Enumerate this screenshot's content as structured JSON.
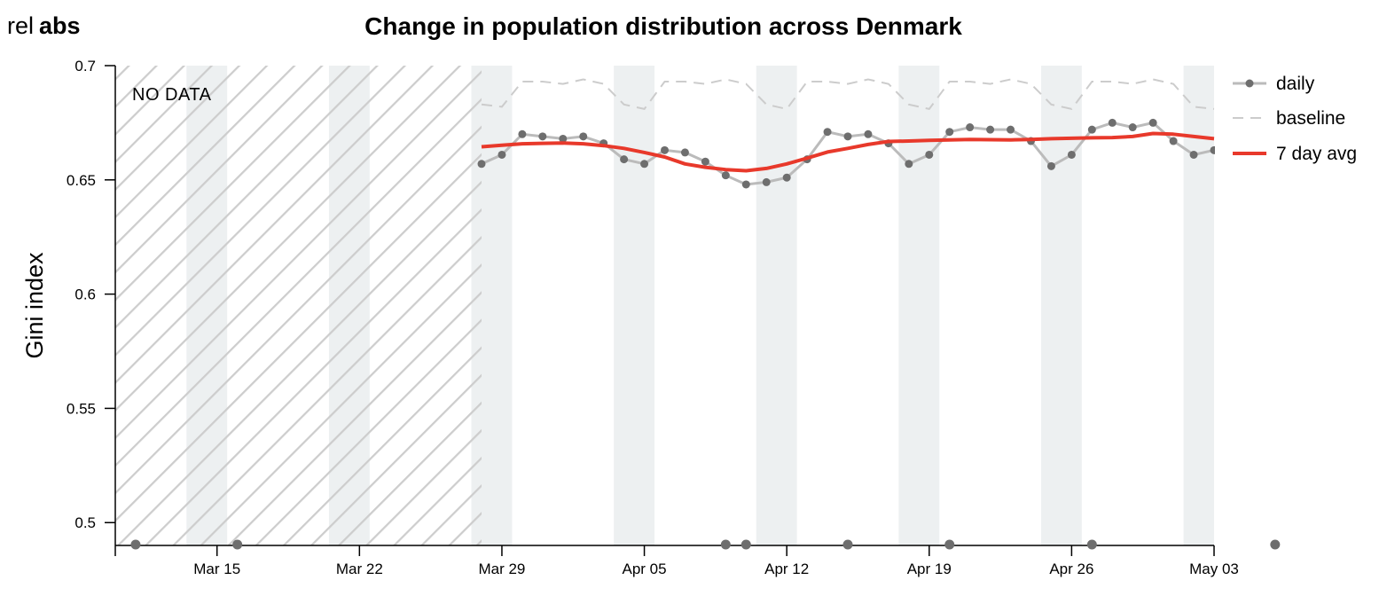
{
  "toggle": {
    "rel_label": "rel",
    "abs_label": "abs"
  },
  "colors": {
    "daily_line": "#bbbbbb",
    "daily_point": "#6e6e6e",
    "baseline": "#cccccc",
    "avg": "#e8392b",
    "weekend_band": "#edf0f1",
    "hatch": "#cdcdcd"
  },
  "chart_data": {
    "type": "line",
    "title": "Change in population distribution across Denmark",
    "xlabel": "",
    "ylabel": "Gini index",
    "ylim": [
      0.49,
      0.7
    ],
    "yticks": [
      0.5,
      0.55,
      0.6,
      0.65,
      0.7
    ],
    "ytick_labels": [
      "0.5",
      "0.55",
      "0.6",
      "0.65",
      "0.7"
    ],
    "xlim": [
      "2020-03-10",
      "2020-05-03"
    ],
    "xticks": [
      "2020-03-15",
      "2020-03-22",
      "2020-03-29",
      "2020-04-05",
      "2020-04-12",
      "2020-04-19",
      "2020-04-26",
      "2020-05-03"
    ],
    "xtick_labels": [
      "Mar 15",
      "Mar 22",
      "Mar 29",
      "Apr 05",
      "Apr 12",
      "Apr 19",
      "Apr 26",
      "May 03"
    ],
    "no_data_range": [
      "2020-03-10",
      "2020-03-28"
    ],
    "no_data_label": "NO DATA",
    "weekend_bands": [
      [
        "2020-03-13 12:00",
        "2020-03-15 12:00"
      ],
      [
        "2020-03-20 12:00",
        "2020-03-22 12:00"
      ],
      [
        "2020-03-27 12:00",
        "2020-03-29 12:00"
      ],
      [
        "2020-04-03 12:00",
        "2020-04-05 12:00"
      ],
      [
        "2020-04-10 12:00",
        "2020-04-12 12:00"
      ],
      [
        "2020-04-17 12:00",
        "2020-04-19 12:00"
      ],
      [
        "2020-04-24 12:00",
        "2020-04-26 12:00"
      ],
      [
        "2020-05-01 12:00",
        "2020-05-03"
      ]
    ],
    "legend": {
      "placement": "top-right",
      "entries": [
        "daily",
        "baseline",
        "7 day avg"
      ]
    },
    "series": [
      {
        "name": "daily",
        "x": [
          "2020-03-28",
          "2020-03-29",
          "2020-03-30",
          "2020-03-31",
          "2020-04-01",
          "2020-04-02",
          "2020-04-03",
          "2020-04-04",
          "2020-04-05",
          "2020-04-06",
          "2020-04-07",
          "2020-04-08",
          "2020-04-09",
          "2020-04-10",
          "2020-04-11",
          "2020-04-12",
          "2020-04-13",
          "2020-04-14",
          "2020-04-15",
          "2020-04-16",
          "2020-04-17",
          "2020-04-18",
          "2020-04-19",
          "2020-04-20",
          "2020-04-21",
          "2020-04-22",
          "2020-04-23",
          "2020-04-24",
          "2020-04-25",
          "2020-04-26",
          "2020-04-27",
          "2020-04-28",
          "2020-04-29",
          "2020-04-30",
          "2020-05-01",
          "2020-05-02",
          "2020-05-03"
        ],
        "y": [
          0.657,
          0.661,
          0.67,
          0.669,
          0.668,
          0.669,
          0.666,
          0.659,
          0.657,
          0.663,
          0.662,
          0.658,
          0.652,
          0.648,
          0.649,
          0.651,
          0.659,
          0.671,
          0.669,
          0.67,
          0.666,
          0.657,
          0.661,
          0.671,
          0.673,
          0.672,
          0.672,
          0.667,
          0.656,
          0.661,
          0.672,
          0.675,
          0.673,
          0.675,
          0.667,
          0.661,
          0.663
        ]
      },
      {
        "name": "baseline",
        "x": [
          "2020-03-28",
          "2020-03-29",
          "2020-03-30",
          "2020-03-31",
          "2020-04-01",
          "2020-04-02",
          "2020-04-03",
          "2020-04-04",
          "2020-04-05",
          "2020-04-06",
          "2020-04-07",
          "2020-04-08",
          "2020-04-09",
          "2020-04-10",
          "2020-04-11",
          "2020-04-12",
          "2020-04-13",
          "2020-04-14",
          "2020-04-15",
          "2020-04-16",
          "2020-04-17",
          "2020-04-18",
          "2020-04-19",
          "2020-04-20",
          "2020-04-21",
          "2020-04-22",
          "2020-04-23",
          "2020-04-24",
          "2020-04-25",
          "2020-04-26",
          "2020-04-27",
          "2020-04-28",
          "2020-04-29",
          "2020-04-30",
          "2020-05-01",
          "2020-05-02",
          "2020-05-03"
        ],
        "y": [
          0.683,
          0.682,
          0.693,
          0.693,
          0.692,
          0.694,
          0.692,
          0.683,
          0.681,
          0.693,
          0.693,
          0.692,
          0.694,
          0.692,
          0.683,
          0.681,
          0.693,
          0.693,
          0.692,
          0.694,
          0.692,
          0.683,
          0.681,
          0.693,
          0.693,
          0.692,
          0.694,
          0.692,
          0.683,
          0.681,
          0.693,
          0.693,
          0.692,
          0.694,
          0.692,
          0.682,
          0.681
        ]
      },
      {
        "name": "7 day avg",
        "x": [
          "2020-03-28",
          "2020-03-29",
          "2020-03-30",
          "2020-03-31",
          "2020-04-01",
          "2020-04-02",
          "2020-04-03",
          "2020-04-04",
          "2020-04-05",
          "2020-04-06",
          "2020-04-07",
          "2020-04-08",
          "2020-04-09",
          "2020-04-10",
          "2020-04-11",
          "2020-04-12",
          "2020-04-13",
          "2020-04-14",
          "2020-04-15",
          "2020-04-16",
          "2020-04-17",
          "2020-04-18",
          "2020-04-19",
          "2020-04-20",
          "2020-04-21",
          "2020-04-22",
          "2020-04-23",
          "2020-04-24",
          "2020-04-25",
          "2020-04-26",
          "2020-04-27",
          "2020-04-28",
          "2020-04-29",
          "2020-04-30",
          "2020-05-01",
          "2020-05-02",
          "2020-05-03"
        ],
        "y": [
          0.6645,
          0.6652,
          0.6658,
          0.666,
          0.6661,
          0.6658,
          0.665,
          0.6638,
          0.662,
          0.66,
          0.657,
          0.6555,
          0.6545,
          0.654,
          0.655,
          0.657,
          0.6595,
          0.6622,
          0.6638,
          0.6655,
          0.6668,
          0.667,
          0.6673,
          0.6675,
          0.6677,
          0.6676,
          0.6675,
          0.6677,
          0.668,
          0.6682,
          0.6684,
          0.6685,
          0.669,
          0.6703,
          0.67,
          0.669,
          0.668
        ]
      }
    ],
    "zero_axis_markers": [
      "2020-03-11",
      "2020-03-16",
      "2020-04-09",
      "2020-04-10",
      "2020-04-15",
      "2020-04-20",
      "2020-04-27",
      "2020-05-06"
    ]
  }
}
